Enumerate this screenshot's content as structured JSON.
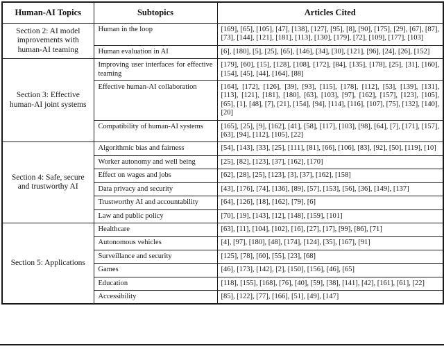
{
  "page": {
    "background": "#ffffff",
    "border_color": "#1a1a1a",
    "text_color": "#141414"
  },
  "table": {
    "headers": [
      "Human-AI Topics",
      "Subtopics",
      "Articles Cited"
    ],
    "sections": [
      {
        "topic": "Section 2: AI model improvements with human-AI teaming",
        "rows": [
          {
            "subtopic": "Human in the loop",
            "cited": "[169], [65], [105], [47], [138], [127], [95], [8], [90], [175], [29], [67], [87], [73], [144], [121], [181], [113], [130], [179], [72], [109], [177], [103]"
          },
          {
            "subtopic": "Human evaluation in AI",
            "cited": "[6], [180], [5], [25], [65], [146], [34], [30], [121], [96], [24], [26], [152]"
          }
        ]
      },
      {
        "topic": "Section 3: Effective human-AI joint systems",
        "rows": [
          {
            "subtopic": "Improving user interfaces for effective teaming",
            "cited": "[179], [60], [15], [128], [108], [172], [84], [135], [178], [25], [31], [160], [154], [45], [44], [164], [88]"
          },
          {
            "subtopic": "Effective human-AI collaboration",
            "cited": "[164], [172], [126], [39], [93], [115], [178], [112], [53], [139], [131], [113], [121], [181], [180], [63], [103], [97], [162], [157], [123], [105], [65], [1], [48], [7], [21], [154], [94], [114], [116], [107], [75], [132], [140], [20]"
          },
          {
            "subtopic": "Compatibility of human-AI systems",
            "cited": "[165], [25], [9], [162], [41], [58], [117], [103], [98], [64], [7], [171], [157], [63], [94], [112], [105], [22]"
          }
        ]
      },
      {
        "topic": "Section 4: Safe, secure and trustworthy AI",
        "rows": [
          {
            "subtopic": "Algorithmic bias and fairness",
            "cited": "[54], [143], [33], [25], [111], [81], [66], [106], [83], [92], [50], [119], [10]"
          },
          {
            "subtopic": "Worker autonomy and well being",
            "cited": "[25], [82], [123], [37], [162], [170]"
          },
          {
            "subtopic": "Effect on wages and jobs",
            "cited": "[62], [28], [25], [123], [3], [37], [162], [158]"
          },
          {
            "subtopic": "Data privacy and security",
            "cited": "[43], [176], [74], [136], [89], [57], [153], [56], [36], [149], [137]"
          },
          {
            "subtopic": "Trustworthy AI and accountability",
            "cited": "[64], [126], [18], [162], [79], [6]"
          },
          {
            "subtopic": "Law and public policy",
            "cited": "[70], [19], [143], [12], [148], [159], [101]"
          }
        ]
      },
      {
        "topic": "Section 5: Applications",
        "rows": [
          {
            "subtopic": "Healthcare",
            "cited": "[63], [11], [104], [102], [16], [27], [17], [99], [86], [71]"
          },
          {
            "subtopic": "Autonomous vehicles",
            "cited": "[4], [97], [180], [48], [174], [124], [35], [167], [91]"
          },
          {
            "subtopic": "Surveillance and security",
            "cited": "[125], [78], [60], [55], [23], [68]"
          },
          {
            "subtopic": "Games",
            "cited": "[46], [173], [142], [2], [150], [156], [46], [65]"
          },
          {
            "subtopic": "Education",
            "cited": "[118], [155], [168], [76], [40], [59], [38], [141], [42], [161], [61], [22]"
          },
          {
            "subtopic": "Accessibility",
            "cited": "[85], [122], [77], [166], [51], [49], [147]"
          }
        ]
      }
    ]
  }
}
